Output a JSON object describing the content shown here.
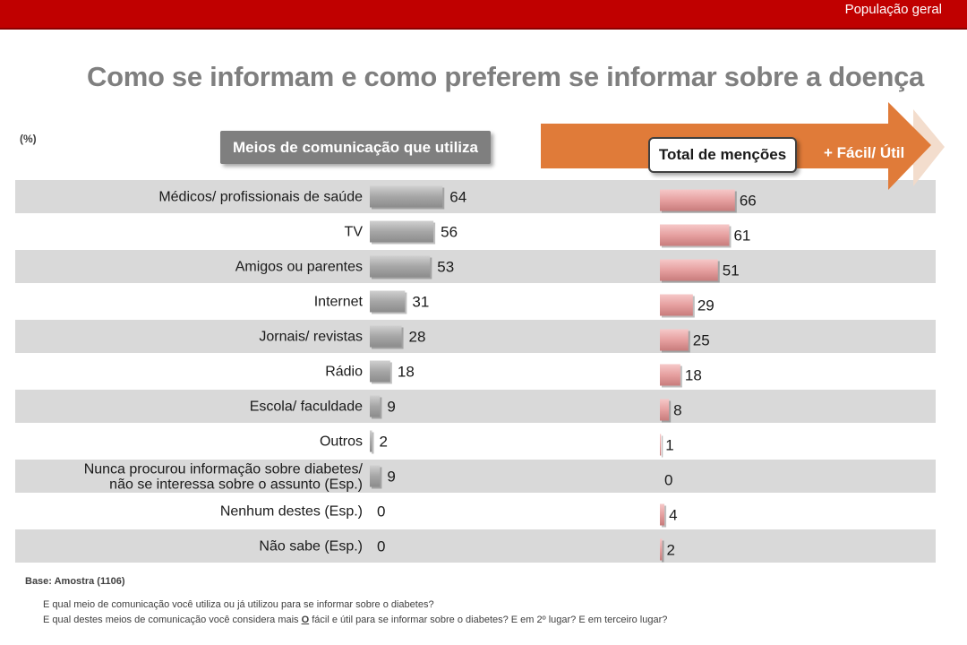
{
  "header": {
    "tag": "População geral"
  },
  "title": "Como se informam e como preferem se informar sobre a doença",
  "unit_label": "(%)",
  "left_header": "Meios de comunicação que  utiliza",
  "right_header": "Total de menções",
  "arrow_label": "+ Fácil/ Útil",
  "footer": {
    "base": "Base: Amostra (1106)",
    "question1": "E qual meio de comunicação você utiliza ou já utilizou para se informar sobre o diabetes?",
    "question2_pre": "E qual destes meios de comunicação você considera mais ",
    "question2_mid": "O",
    "question2_post": " fácil e útil para se informar sobre o diabetes? E em 2º lugar? E em terceiro lugar?"
  },
  "colors": {
    "brand_red": "#c00000",
    "gray_bar": "#a6a6a6",
    "pink_bar": "#e6a0a0",
    "orange_arrow": "#e07b39",
    "stripe": "#d9d9d9"
  },
  "chart_data": {
    "type": "bar",
    "orientation": "horizontal",
    "categories": [
      [
        "Médicos/ profissionais de saúde"
      ],
      [
        "TV"
      ],
      [
        "Amigos ou parentes"
      ],
      [
        "Internet"
      ],
      [
        "Jornais/ revistas"
      ],
      [
        "Rádio"
      ],
      [
        "Escola/ faculdade"
      ],
      [
        "Outros"
      ],
      [
        "Nunca procurou informação sobre diabetes/",
        "não se interessa sobre o assunto (Esp.)"
      ],
      [
        "Nenhum destes (Esp.)"
      ],
      [
        "Não sabe (Esp.)"
      ]
    ],
    "series": [
      {
        "name": "Meios de comunicação que  utiliza",
        "values": [
          64,
          56,
          53,
          31,
          28,
          18,
          9,
          2,
          9,
          0,
          0
        ]
      },
      {
        "name": "Total de menções",
        "values": [
          66,
          61,
          51,
          29,
          25,
          18,
          8,
          1,
          0,
          4,
          2
        ]
      }
    ],
    "xlim": [
      0,
      100
    ]
  }
}
